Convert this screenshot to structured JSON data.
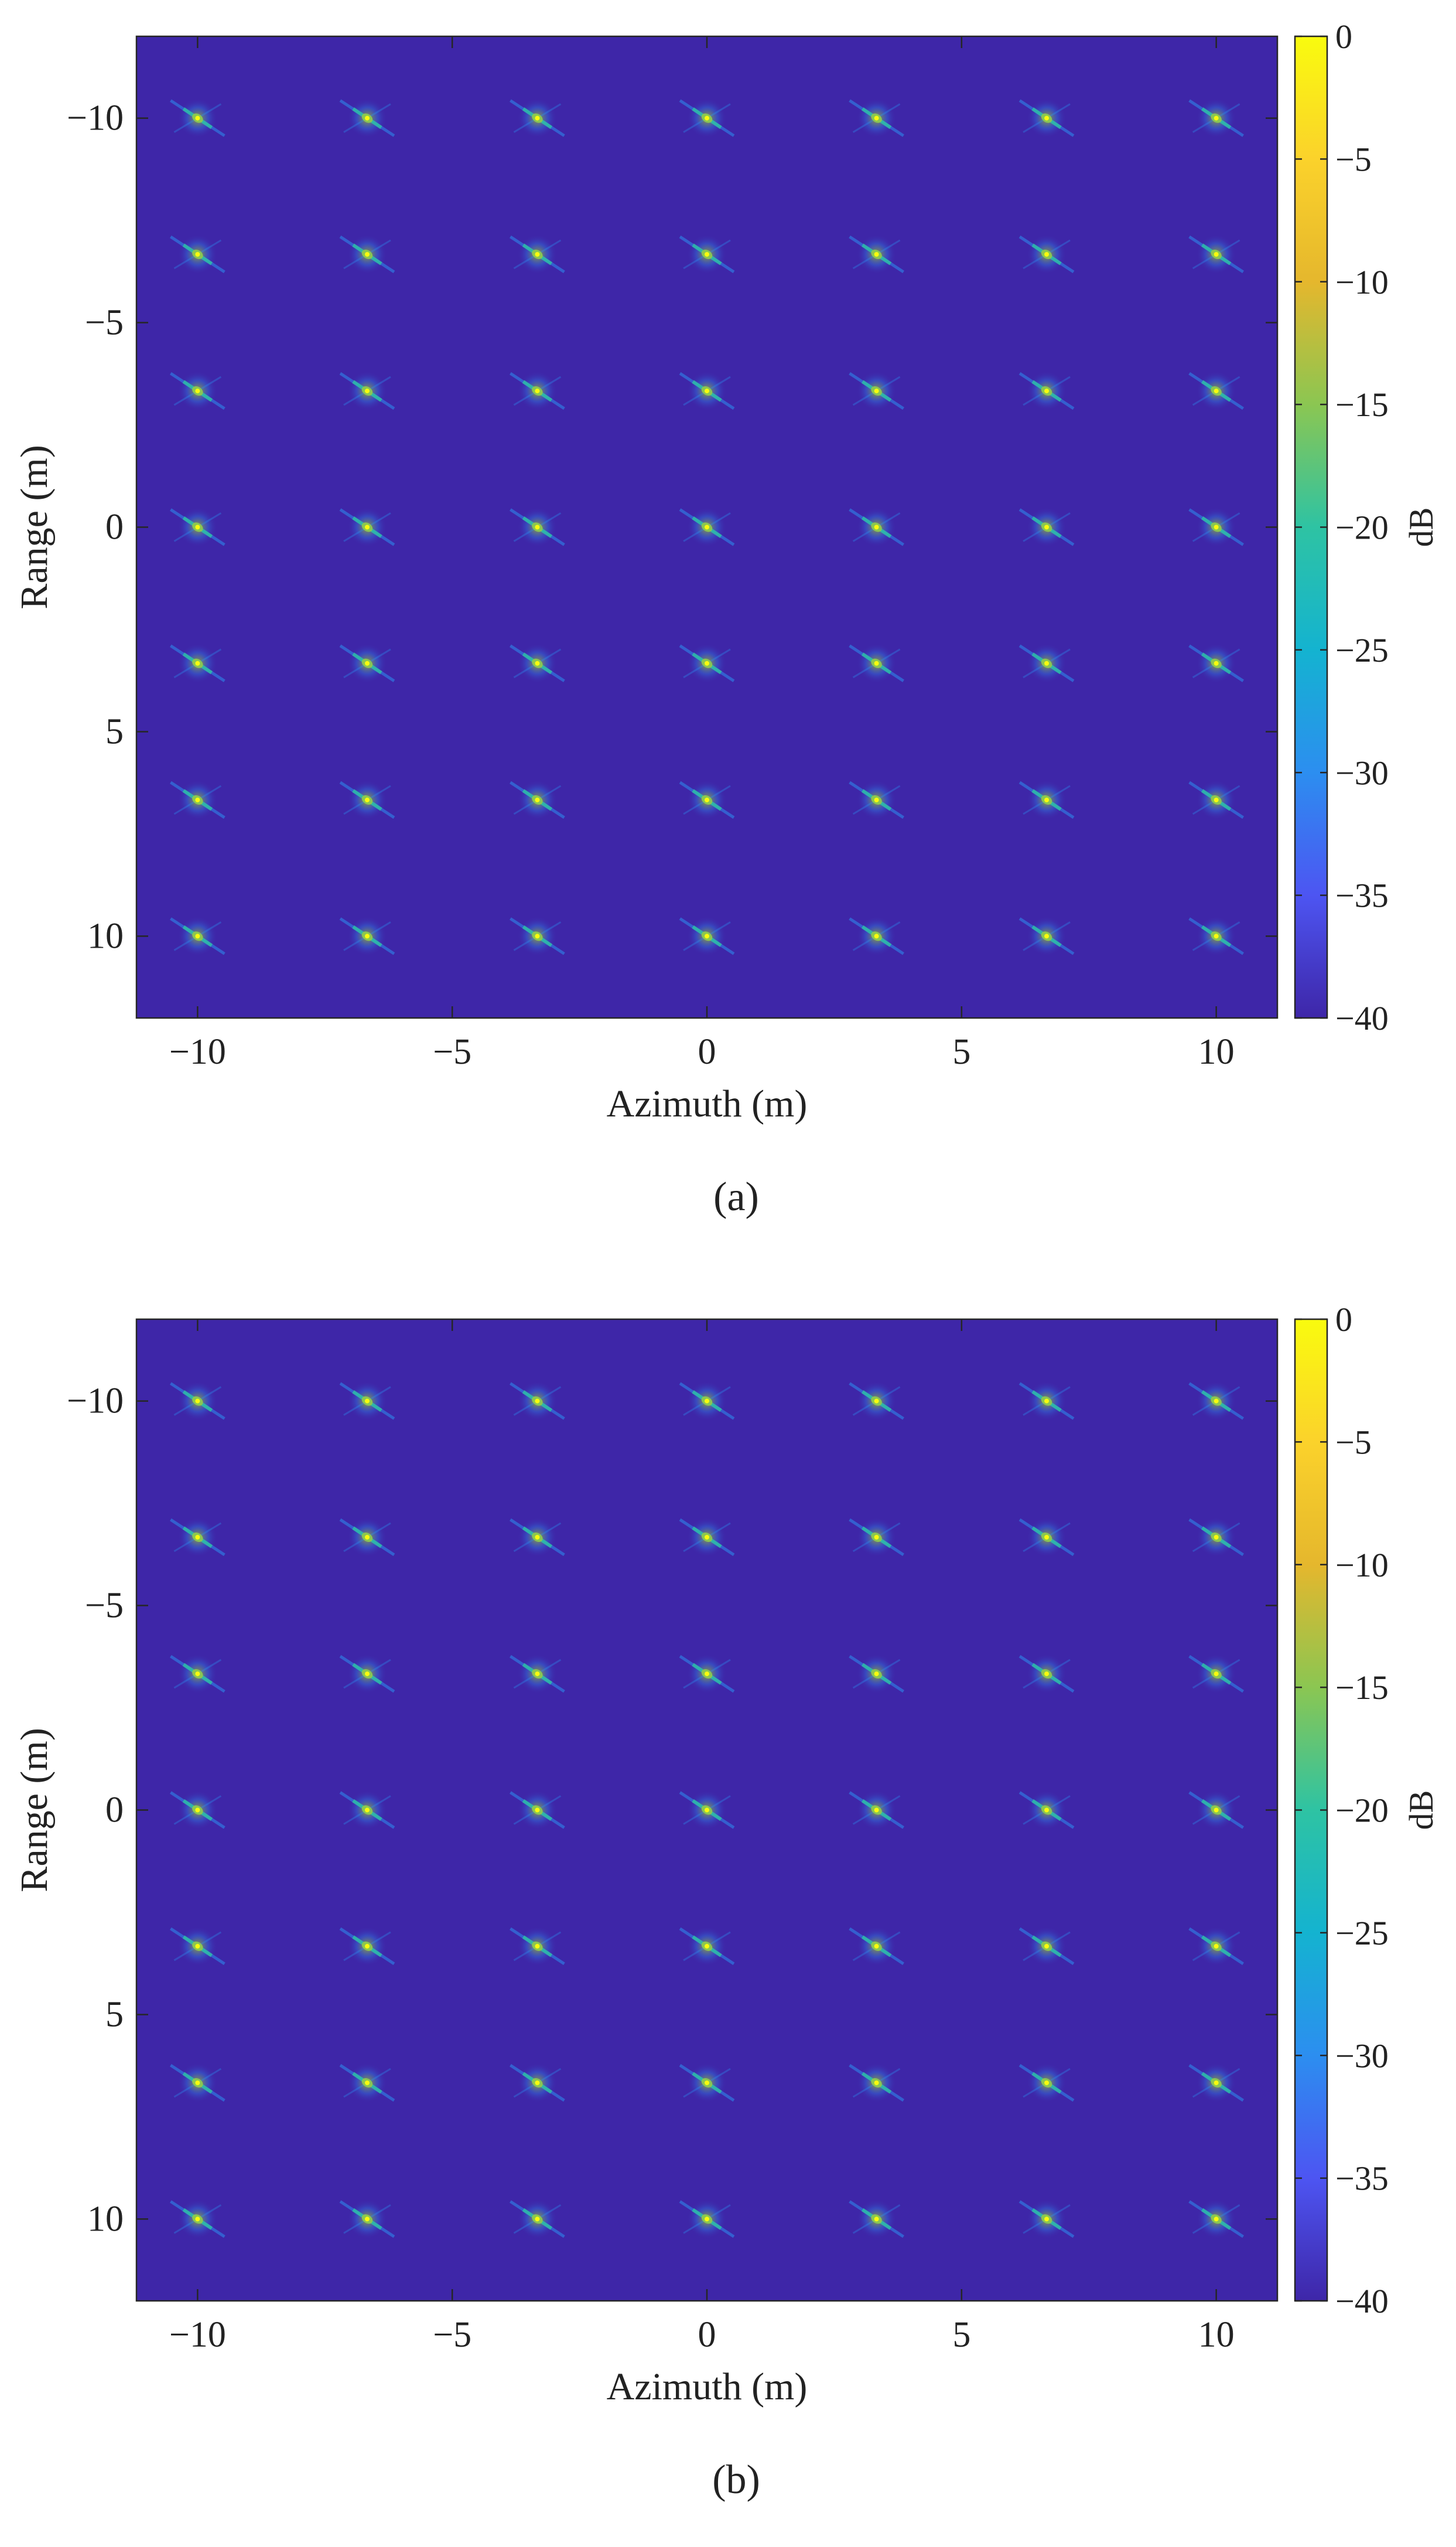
{
  "chart_data": [
    {
      "type": "heatmap",
      "panel_label": "(a)",
      "xlabel": "Azimuth (m)",
      "ylabel": "Range (m)",
      "xlim": [
        -11.2,
        11.2
      ],
      "ylim": [
        -12,
        12
      ],
      "y_reversed": true,
      "xticks": [
        -10,
        -5,
        0,
        5,
        10
      ],
      "yticks": [
        -10,
        -5,
        0,
        5,
        10
      ],
      "xtick_labels": [
        "−10",
        "−5",
        "0",
        "5",
        "10"
      ],
      "ytick_labels": [
        "−10",
        "−5",
        "0",
        "5",
        "10"
      ],
      "colorbar": {
        "label": "dB",
        "min": -40,
        "max": 0,
        "ticks": [
          0,
          -5,
          -10,
          -15,
          -20,
          -25,
          -30,
          -35,
          -40
        ],
        "tick_labels": [
          "0",
          "−5",
          "−10",
          "−15",
          "−20",
          "−25",
          "−30",
          "−35",
          "−40"
        ],
        "colormap": "parula",
        "stops": [
          "#3e26a8",
          "#4d55f2",
          "#2c8ef0",
          "#14b3d0",
          "#2ec3a3",
          "#8bc652",
          "#e5b72d",
          "#fbd22b",
          "#f9fb0e"
        ]
      },
      "background_color": "#3e26a8",
      "grid": false,
      "targets": {
        "azimuth_m": [
          -10,
          -6.67,
          -3.33,
          0,
          3.33,
          6.67,
          10
        ],
        "range_m": [
          -10,
          -6.67,
          -3.33,
          0,
          3.33,
          6.67,
          10
        ],
        "peak_db": 0
      }
    },
    {
      "type": "heatmap",
      "panel_label": "(b)",
      "xlabel": "Azimuth (m)",
      "ylabel": "Range (m)",
      "xlim": [
        -11.2,
        11.2
      ],
      "ylim": [
        -12,
        12
      ],
      "y_reversed": true,
      "xticks": [
        -10,
        -5,
        0,
        5,
        10
      ],
      "yticks": [
        -10,
        -5,
        0,
        5,
        10
      ],
      "xtick_labels": [
        "−10",
        "−5",
        "0",
        "5",
        "10"
      ],
      "ytick_labels": [
        "−10",
        "−5",
        "0",
        "5",
        "10"
      ],
      "colorbar": {
        "label": "dB",
        "min": -40,
        "max": 0,
        "ticks": [
          0,
          -5,
          -10,
          -15,
          -20,
          -25,
          -30,
          -35,
          -40
        ],
        "tick_labels": [
          "0",
          "−5",
          "−10",
          "−15",
          "−20",
          "−25",
          "−30",
          "−35",
          "−40"
        ],
        "colormap": "parula",
        "stops": [
          "#3e26a8",
          "#4d55f2",
          "#2c8ef0",
          "#14b3d0",
          "#2ec3a3",
          "#8bc652",
          "#e5b72d",
          "#fbd22b",
          "#f9fb0e"
        ]
      },
      "background_color": "#3e26a8",
      "grid": false,
      "targets": {
        "azimuth_m": [
          -10,
          -6.67,
          -3.33,
          0,
          3.33,
          6.67,
          10
        ],
        "range_m": [
          -10,
          -6.67,
          -3.33,
          0,
          3.33,
          6.67,
          10
        ],
        "peak_db": 0
      }
    }
  ]
}
